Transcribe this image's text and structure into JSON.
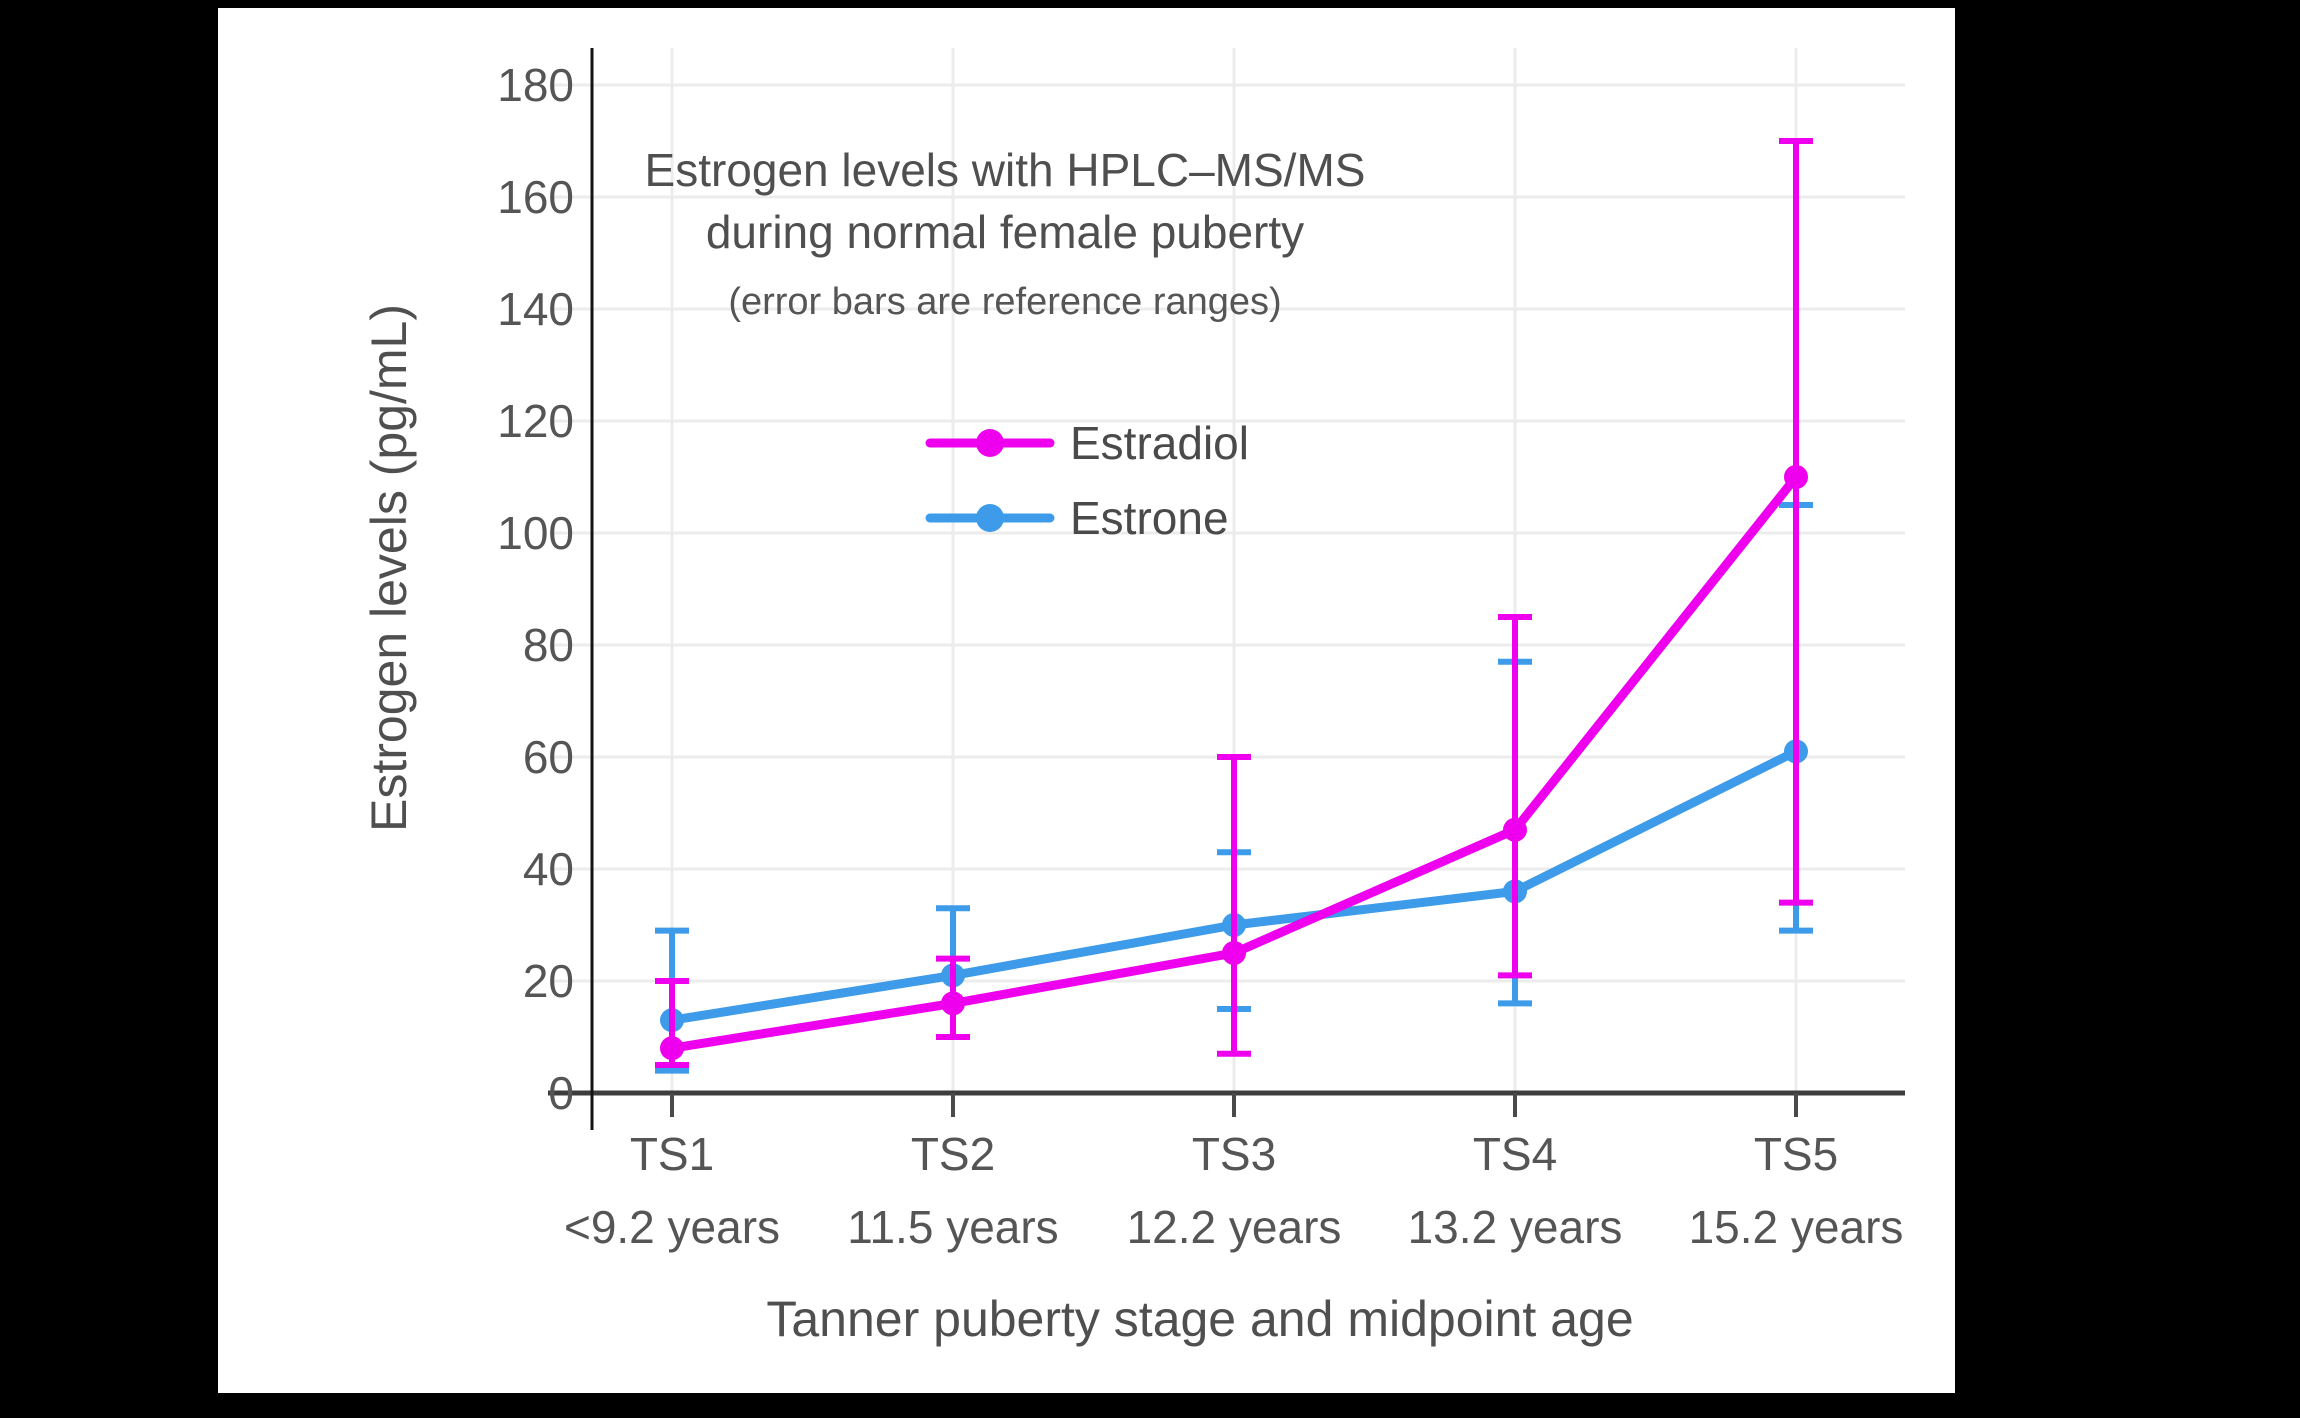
{
  "page": {
    "background_color": "#000000",
    "figure_background_color": "#ffffff",
    "text_color": "#555555",
    "grid_color": "#ececec",
    "axis_color": "#3d3d3d"
  },
  "chart_data": {
    "type": "line",
    "title": "Estrogen levels with HPLC–MS/MS during normal female puberty",
    "title_lines": [
      "Estrogen levels with HPLC–MS/MS",
      "during normal female puberty"
    ],
    "subtitle": "(error bars are reference ranges)",
    "xlabel": "Tanner puberty stage and midpoint age",
    "ylabel": "Estrogen levels (pg/mL)",
    "categories": [
      "TS1",
      "TS2",
      "TS3",
      "TS4",
      "TS5"
    ],
    "category_ages": [
      "<9.2 years",
      "11.5 years",
      "12.2 years",
      "13.2 years",
      "15.2 years"
    ],
    "yticks": [
      0,
      20,
      40,
      60,
      80,
      100,
      120,
      140,
      160,
      180
    ],
    "ylim": [
      0,
      187
    ],
    "grid": true,
    "legend_position": "upper-left-inside",
    "error_bar_meaning": "reference ranges",
    "series": [
      {
        "name": "Estradiol",
        "color": "#EE00EE",
        "values": [
          8,
          16,
          25,
          47,
          110
        ],
        "ref_range_low": [
          5,
          10,
          7,
          21,
          34
        ],
        "ref_range_high": [
          20,
          24,
          60,
          85,
          170
        ]
      },
      {
        "name": "Estrone",
        "color": "#3D9BE9",
        "values": [
          13,
          21,
          30,
          36,
          61
        ],
        "ref_range_low": [
          4,
          10,
          15,
          16,
          29
        ],
        "ref_range_high": [
          29,
          33,
          43,
          77,
          105
        ]
      }
    ]
  }
}
